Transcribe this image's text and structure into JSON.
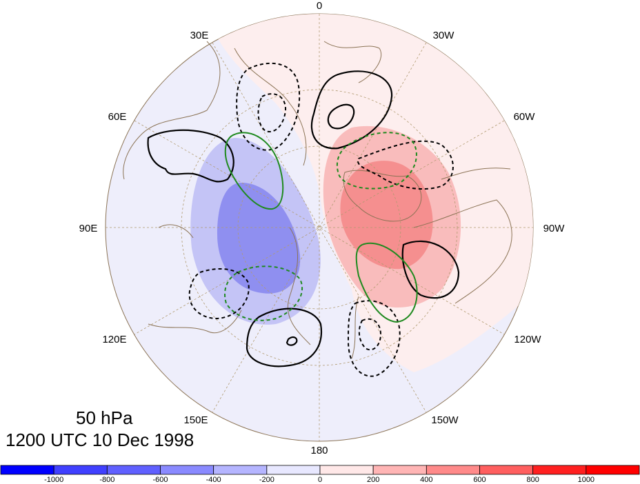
{
  "title": {
    "level": "50 hPa",
    "time": "1200 UTC 10 Dec 1998"
  },
  "longitude_labels": {
    "lon_0": "0",
    "lon_30w": "30W",
    "lon_60w": "60W",
    "lon_90w": "90W",
    "lon_120w": "120W",
    "lon_150w": "150W",
    "lon_180": "180",
    "lon_150e": "150E",
    "lon_120e": "120E",
    "lon_90e": "90E",
    "lon_60e": "60E",
    "lon_30e": "30E"
  },
  "colorbar": {
    "ticks": [
      "-1000",
      "-800",
      "-600",
      "-400",
      "-200",
      "0",
      "200",
      "400",
      "600",
      "800",
      "1000"
    ],
    "colors": [
      "#0000ff",
      "#4040ff",
      "#6060ff",
      "#8a8aff",
      "#b5b5ff",
      "#e8e8ff",
      "#ffe8e8",
      "#ffb5b5",
      "#ff8a8a",
      "#ff5f5f",
      "#ff2020",
      "#ff0000"
    ]
  },
  "legend_colors": {
    "positive_shading": "#ff8a8a",
    "negative_shading": "#8a8aff",
    "contour_black": "#000000",
    "contour_green": "#1f8a1f",
    "coastline": "#8b7355",
    "graticule": "#a08a60"
  }
}
